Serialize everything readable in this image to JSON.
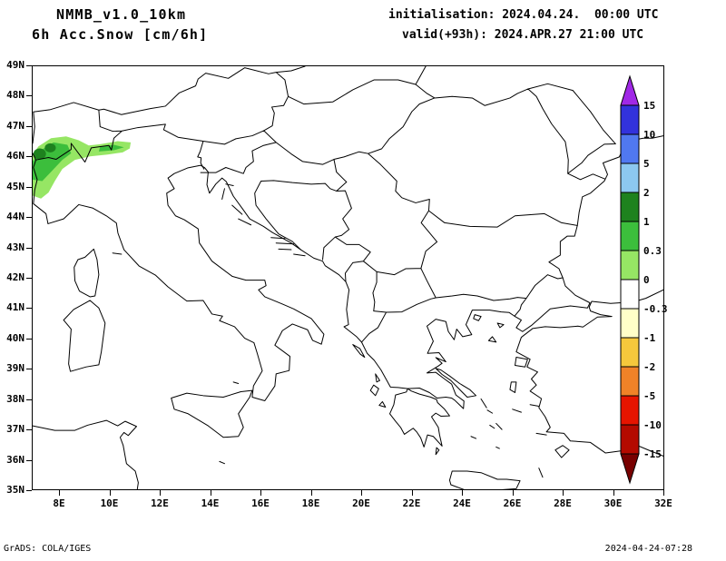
{
  "header": {
    "model": "NMMB_v1.0_10km",
    "field": "6h Acc.Snow [cm/6h]",
    "init": "initialisation: 2024.04.24.  00:00 UTC",
    "valid": "valid(+93h): 2024.APR.27 21:00 UTC"
  },
  "footer": {
    "credit": "GrADS: COLA/IGES",
    "timestamp": "2024-04-24-07:28"
  },
  "axes": {
    "lat_ticks": [
      "49N",
      "48N",
      "47N",
      "46N",
      "45N",
      "44N",
      "43N",
      "42N",
      "41N",
      "40N",
      "39N",
      "38N",
      "37N",
      "36N",
      "35N"
    ],
    "lon_ticks": [
      "8E",
      "10E",
      "12E",
      "14E",
      "16E",
      "18E",
      "20E",
      "22E",
      "24E",
      "26E",
      "28E",
      "30E",
      "32E"
    ]
  },
  "colorbar": {
    "tick_labels": [
      "15",
      "10",
      "5",
      "2",
      "1",
      "0.3",
      "0",
      "-0.3",
      "-1",
      "-2",
      "-5",
      "-10",
      "-15"
    ],
    "colors_top_to_bottom": [
      "#A028E6",
      "#3232DC",
      "#5078F0",
      "#8CC8F0",
      "#1E821E",
      "#3CBE3C",
      "#96E664",
      "#FFFFFF",
      "#FFFFC8",
      "#F5C83C",
      "#F08228",
      "#E61400",
      "#B40A00",
      "#780000"
    ]
  },
  "chart_data": {
    "type": "heatmap",
    "title": "6h Acc.Snow [cm/6h]",
    "model": "NMMB_v1.0_10km",
    "initialisation": "2024.04.24. 00:00 UTC",
    "valid": "2024.APR.27 21:00 UTC",
    "forecast_hour": "+93h",
    "units": "cm/6h",
    "xlabel": "longitude",
    "ylabel": "latitude",
    "xlim": [
      6.9,
      32
    ],
    "ylim": [
      35,
      49
    ],
    "lon_tick_step_deg": 2,
    "lat_tick_step_deg": 1,
    "contour_levels": [
      -15,
      -10,
      -5,
      -2,
      -1,
      -0.3,
      0,
      0.3,
      1,
      2,
      5,
      10,
      15
    ],
    "legend_position": "right",
    "shaded_regions": [
      {
        "range_cm": [
          0,
          0.3
        ],
        "color": "#96E664",
        "where": "outer Alpine arc ~6.9-10.8E, 44.7-46.7N (NW Italy / western Alps)"
      },
      {
        "range_cm": [
          0.3,
          1
        ],
        "color": "#3CBE3C",
        "where": "inner western Alps ~6.9-8.5E, 45.2-46.5N and band ~9.5-10.6E near 46.3N"
      },
      {
        "range_cm": [
          1,
          2
        ],
        "color": "#1E821E",
        "where": "small cores near 7.2E/46.1N and 7.6E/46.3N"
      }
    ],
    "rest_of_domain": "no accumulated snow (white)"
  }
}
